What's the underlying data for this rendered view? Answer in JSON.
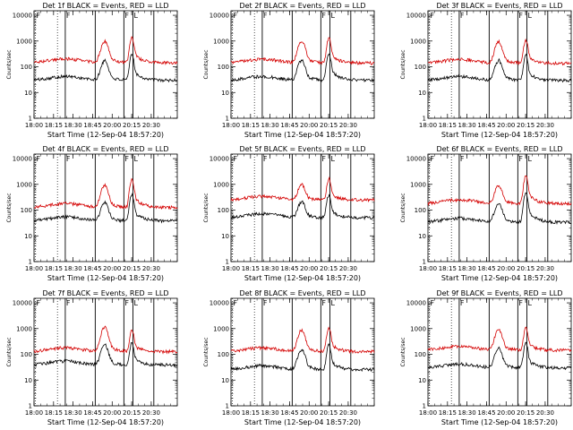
{
  "chart_data": [
    {
      "type": "line",
      "title": "Det 1f BLACK = Events, RED = LLD",
      "xlabel": "Start Time (12-Sep-04 18:57:20)",
      "ylabel": "Counts/sec",
      "yscale": "log",
      "ylim": [
        1,
        15000
      ],
      "xlim": [
        0,
        110
      ],
      "x_ticks": [
        {
          "x": 0,
          "label": "18:00"
        },
        {
          "x": 15,
          "label": "18:15"
        },
        {
          "x": 30,
          "label": "18:30"
        },
        {
          "x": 45,
          "label": "18:45"
        },
        {
          "x": 60,
          "label": "20:00"
        },
        {
          "x": 75,
          "label": "20:15"
        },
        {
          "x": 90,
          "label": "20:30"
        }
      ],
      "y_ticks": [
        1,
        10,
        100,
        1000,
        10000
      ],
      "y_tick_labels": [
        "1",
        "10",
        "100",
        "1000",
        "10000"
      ],
      "x_minor_step": 5,
      "dotted_vlines": [
        1,
        18
      ],
      "solid_vlines": [
        24,
        47,
        69,
        76,
        92
      ],
      "flags": [
        "F",
        "F",
        "F",
        "L"
      ],
      "series": [
        {
          "color": "#000000",
          "base": 35,
          "peaks": [
            [
              54,
              130,
              2.2
            ],
            [
              75,
              260,
              1.2
            ]
          ]
        },
        {
          "color": "#d40000",
          "base": 170,
          "peaks": [
            [
              54,
              780,
              2.2
            ],
            [
              75,
              1200,
              1.2
            ]
          ]
        }
      ]
    },
    {
      "type": "line",
      "title": "Det 2f BLACK = Events, RED = LLD",
      "xlabel": "Start Time (12-Sep-04 18:57:20)",
      "ylabel": "Counts/sec",
      "yscale": "log",
      "ylim": [
        1,
        15000
      ],
      "xlim": [
        0,
        110
      ],
      "x_ticks": [
        {
          "x": 0,
          "label": "18:00"
        },
        {
          "x": 15,
          "label": "18:15"
        },
        {
          "x": 30,
          "label": "18:30"
        },
        {
          "x": 45,
          "label": "18:45"
        },
        {
          "x": 60,
          "label": "20:00"
        },
        {
          "x": 75,
          "label": "20:15"
        },
        {
          "x": 90,
          "label": "20:30"
        }
      ],
      "y_ticks": [
        1,
        10,
        100,
        1000,
        10000
      ],
      "y_tick_labels": [
        "1",
        "10",
        "100",
        "1000",
        "10000"
      ],
      "x_minor_step": 5,
      "dotted_vlines": [
        1,
        18
      ],
      "solid_vlines": [
        24,
        47,
        69,
        76,
        92
      ],
      "flags": [
        "F",
        "F",
        "F",
        "L"
      ],
      "series": [
        {
          "color": "#000000",
          "base": 35,
          "peaks": [
            [
              54,
              140,
              2.2
            ],
            [
              75,
              300,
              1.2
            ]
          ]
        },
        {
          "color": "#d40000",
          "base": 165,
          "peaks": [
            [
              54,
              800,
              2.2
            ],
            [
              75,
              1100,
              1.2
            ]
          ]
        }
      ]
    },
    {
      "type": "line",
      "title": "Det 3f BLACK = Events, RED = LLD",
      "xlabel": "Start Time (12-Sep-04 18:57:20)",
      "ylabel": "Counts/sec",
      "yscale": "log",
      "ylim": [
        1,
        15000
      ],
      "xlim": [
        0,
        110
      ],
      "x_ticks": [
        {
          "x": 0,
          "label": "18:00"
        },
        {
          "x": 15,
          "label": "18:15"
        },
        {
          "x": 30,
          "label": "18:30"
        },
        {
          "x": 45,
          "label": "18:45"
        },
        {
          "x": 60,
          "label": "20:00"
        },
        {
          "x": 75,
          "label": "20:15"
        },
        {
          "x": 90,
          "label": "20:30"
        }
      ],
      "y_ticks": [
        1,
        10,
        100,
        1000,
        10000
      ],
      "y_tick_labels": [
        "1",
        "10",
        "100",
        "1000",
        "10000"
      ],
      "x_minor_step": 5,
      "dotted_vlines": [
        1,
        18
      ],
      "solid_vlines": [
        24,
        47,
        69,
        76,
        92
      ],
      "flags": [
        "F",
        "F",
        "F",
        "L"
      ],
      "series": [
        {
          "color": "#000000",
          "base": 35,
          "peaks": [
            [
              54,
              130,
              2.2
            ],
            [
              75,
              230,
              1.2
            ]
          ]
        },
        {
          "color": "#d40000",
          "base": 160,
          "peaks": [
            [
              54,
              750,
              2.2
            ],
            [
              75,
              900,
              1.2
            ]
          ]
        }
      ]
    },
    {
      "type": "line",
      "title": "Det 4f BLACK = Events, RED = LLD",
      "xlabel": "Start Time (12-Sep-04 18:57:20)",
      "ylabel": "Counts/sec",
      "yscale": "log",
      "ylim": [
        1,
        15000
      ],
      "xlim": [
        0,
        110
      ],
      "x_ticks": [
        {
          "x": 0,
          "label": "18:00"
        },
        {
          "x": 15,
          "label": "18:15"
        },
        {
          "x": 30,
          "label": "18:30"
        },
        {
          "x": 45,
          "label": "18:45"
        },
        {
          "x": 60,
          "label": "20:00"
        },
        {
          "x": 75,
          "label": "20:15"
        },
        {
          "x": 90,
          "label": "20:30"
        }
      ],
      "y_ticks": [
        1,
        10,
        100,
        1000,
        10000
      ],
      "y_tick_labels": [
        "1",
        "10",
        "100",
        "1000",
        "10000"
      ],
      "x_minor_step": 5,
      "dotted_vlines": [
        1,
        18
      ],
      "solid_vlines": [
        24,
        47,
        69,
        76,
        92
      ],
      "flags": [
        "F",
        "F",
        "F",
        "L"
      ],
      "series": [
        {
          "color": "#000000",
          "base": 45,
          "peaks": [
            [
              54,
              150,
              2.2
            ],
            [
              75,
              350,
              1.2
            ]
          ]
        },
        {
          "color": "#d40000",
          "base": 150,
          "peaks": [
            [
              54,
              750,
              2.2
            ],
            [
              75,
              1400,
              1.2
            ]
          ]
        }
      ]
    },
    {
      "type": "line",
      "title": "Det 5f BLACK = Events, RED = LLD",
      "xlabel": "Start Time (12-Sep-04 18:57:20)",
      "ylabel": "Counts/sec",
      "yscale": "log",
      "ylim": [
        1,
        15000
      ],
      "xlim": [
        0,
        110
      ],
      "x_ticks": [
        {
          "x": 0,
          "label": "18:00"
        },
        {
          "x": 15,
          "label": "18:15"
        },
        {
          "x": 30,
          "label": "18:30"
        },
        {
          "x": 45,
          "label": "18:45"
        },
        {
          "x": 60,
          "label": "20:00"
        },
        {
          "x": 75,
          "label": "20:15"
        },
        {
          "x": 90,
          "label": "20:30"
        }
      ],
      "y_ticks": [
        1,
        10,
        100,
        1000,
        10000
      ],
      "y_tick_labels": [
        "1",
        "10",
        "100",
        "1000",
        "10000"
      ],
      "x_minor_step": 5,
      "dotted_vlines": [
        1,
        18
      ],
      "solid_vlines": [
        24,
        47,
        69,
        76,
        92
      ],
      "flags": [
        "F",
        "F",
        "F",
        "L"
      ],
      "series": [
        {
          "color": "#000000",
          "base": 60,
          "peaks": [
            [
              54,
              150,
              2.2
            ],
            [
              75,
              320,
              1.2
            ]
          ]
        },
        {
          "color": "#d40000",
          "base": 290,
          "peaks": [
            [
              54,
              650,
              2.2
            ],
            [
              75,
              1300,
              1.2
            ]
          ]
        }
      ]
    },
    {
      "type": "line",
      "title": "Det 6f BLACK = Events, RED = LLD",
      "xlabel": "Start Time (12-Sep-04 18:57:20)",
      "ylabel": "Counts/sec",
      "yscale": "log",
      "ylim": [
        1,
        15000
      ],
      "xlim": [
        0,
        110
      ],
      "x_ticks": [
        {
          "x": 0,
          "label": "18:00"
        },
        {
          "x": 15,
          "label": "18:15"
        },
        {
          "x": 30,
          "label": "18:30"
        },
        {
          "x": 45,
          "label": "18:45"
        },
        {
          "x": 60,
          "label": "20:00"
        },
        {
          "x": 75,
          "label": "20:15"
        },
        {
          "x": 90,
          "label": "20:30"
        }
      ],
      "y_ticks": [
        1,
        10,
        100,
        1000,
        10000
      ],
      "y_tick_labels": [
        "1",
        "10",
        "100",
        "1000",
        "10000"
      ],
      "x_minor_step": 5,
      "dotted_vlines": [
        1,
        18
      ],
      "solid_vlines": [
        24,
        47,
        69,
        76,
        92
      ],
      "flags": [
        "F",
        "F",
        "F",
        "L"
      ],
      "series": [
        {
          "color": "#000000",
          "base": 40,
          "peaks": [
            [
              54,
              140,
              2.2
            ],
            [
              75,
              400,
              1.2
            ]
          ]
        },
        {
          "color": "#d40000",
          "base": 210,
          "peaks": [
            [
              54,
              650,
              2.2
            ],
            [
              75,
              1800,
              1.2
            ]
          ]
        }
      ]
    },
    {
      "type": "line",
      "title": "Det 7f BLACK = Events, RED = LLD",
      "xlabel": "Start Time (12-Sep-04 18:57:20)",
      "ylabel": "Counts/sec",
      "yscale": "log",
      "ylim": [
        1,
        15000
      ],
      "xlim": [
        0,
        110
      ],
      "x_ticks": [
        {
          "x": 0,
          "label": "18:00"
        },
        {
          "x": 15,
          "label": "18:15"
        },
        {
          "x": 30,
          "label": "18:30"
        },
        {
          "x": 45,
          "label": "18:45"
        },
        {
          "x": 60,
          "label": "20:00"
        },
        {
          "x": 75,
          "label": "20:15"
        },
        {
          "x": 90,
          "label": "20:30"
        }
      ],
      "y_ticks": [
        1,
        10,
        100,
        1000,
        10000
      ],
      "y_tick_labels": [
        "1",
        "10",
        "100",
        "1000",
        "10000"
      ],
      "x_minor_step": 5,
      "dotted_vlines": [
        1,
        18
      ],
      "solid_vlines": [
        24,
        47,
        69,
        76,
        92
      ],
      "flags": [
        "F",
        "F",
        "F",
        "L"
      ],
      "series": [
        {
          "color": "#000000",
          "base": 45,
          "peaks": [
            [
              54,
              180,
              2.2
            ],
            [
              75,
              230,
              1.2
            ]
          ]
        },
        {
          "color": "#d40000",
          "base": 150,
          "peaks": [
            [
              54,
              900,
              2.2
            ],
            [
              75,
              700,
              1.2
            ]
          ]
        }
      ]
    },
    {
      "type": "line",
      "title": "Det 8f BLACK = Events, RED = LLD",
      "xlabel": "Start Time (12-Sep-04 18:57:20)",
      "ylabel": "Counts/sec",
      "yscale": "log",
      "ylim": [
        1,
        15000
      ],
      "xlim": [
        0,
        110
      ],
      "x_ticks": [
        {
          "x": 0,
          "label": "18:00"
        },
        {
          "x": 15,
          "label": "18:15"
        },
        {
          "x": 30,
          "label": "18:30"
        },
        {
          "x": 45,
          "label": "18:45"
        },
        {
          "x": 60,
          "label": "20:00"
        },
        {
          "x": 75,
          "label": "20:15"
        },
        {
          "x": 90,
          "label": "20:30"
        }
      ],
      "y_ticks": [
        1,
        10,
        100,
        1000,
        10000
      ],
      "y_tick_labels": [
        "1",
        "10",
        "100",
        "1000",
        "10000"
      ],
      "x_minor_step": 5,
      "dotted_vlines": [
        1,
        18
      ],
      "solid_vlines": [
        24,
        47,
        69,
        76,
        92
      ],
      "flags": [
        "F",
        "F",
        "F",
        "L"
      ],
      "series": [
        {
          "color": "#000000",
          "base": 30,
          "peaks": [
            [
              54,
              120,
              2.2
            ],
            [
              75,
              200,
              1.2
            ]
          ]
        },
        {
          "color": "#d40000",
          "base": 150,
          "peaks": [
            [
              54,
              700,
              2.2
            ],
            [
              75,
              900,
              1.2
            ]
          ]
        }
      ]
    },
    {
      "type": "line",
      "title": "Det 9f BLACK = Events, RED = LLD",
      "xlabel": "Start Time (12-Sep-04 18:57:20)",
      "ylabel": "Counts/sec",
      "yscale": "log",
      "ylim": [
        1,
        15000
      ],
      "xlim": [
        0,
        110
      ],
      "x_ticks": [
        {
          "x": 0,
          "label": "18:00"
        },
        {
          "x": 15,
          "label": "18:15"
        },
        {
          "x": 30,
          "label": "18:30"
        },
        {
          "x": 45,
          "label": "18:45"
        },
        {
          "x": 60,
          "label": "20:00"
        },
        {
          "x": 75,
          "label": "20:15"
        },
        {
          "x": 90,
          "label": "20:30"
        }
      ],
      "y_ticks": [
        1,
        10,
        100,
        1000,
        10000
      ],
      "y_tick_labels": [
        "1",
        "10",
        "100",
        "1000",
        "10000"
      ],
      "x_minor_step": 5,
      "dotted_vlines": [
        1,
        18
      ],
      "solid_vlines": [
        24,
        47,
        69,
        76,
        92
      ],
      "flags": [
        "F",
        "F",
        "F",
        "L"
      ],
      "series": [
        {
          "color": "#000000",
          "base": 35,
          "peaks": [
            [
              54,
              130,
              2.2
            ],
            [
              75,
              230,
              1.2
            ]
          ]
        },
        {
          "color": "#d40000",
          "base": 170,
          "peaks": [
            [
              54,
              700,
              2.2
            ],
            [
              75,
              850,
              1.2
            ]
          ]
        }
      ]
    }
  ]
}
